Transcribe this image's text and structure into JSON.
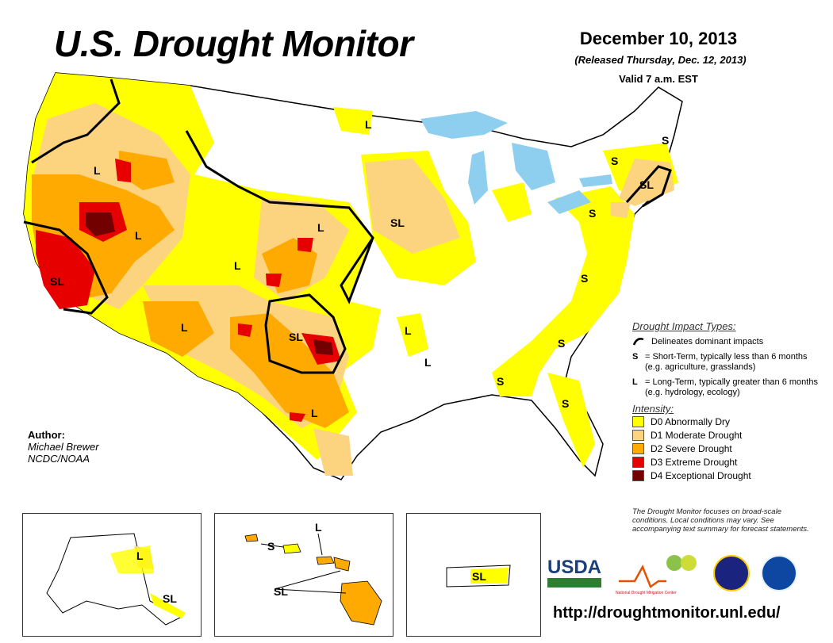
{
  "header": {
    "title": "U.S. Drought Monitor",
    "date": "December 10, 2013",
    "released": "(Released Thursday, Dec. 12, 2013)",
    "valid": "Valid 7 a.m. EST"
  },
  "legend": {
    "impact_heading": "Drought Impact Types:",
    "delineates": "Delineates dominant impacts",
    "s_symbol": "S",
    "s_text": "= Short-Term, typically less than 6 months (e.g. agriculture, grasslands)",
    "l_symbol": "L",
    "l_text": "= Long-Term, typically greater than 6 months (e.g. hydrology, ecology)",
    "intensity_heading": "Intensity:",
    "intensity": [
      {
        "label": "D0 Abnormally Dry",
        "color": "#ffff00"
      },
      {
        "label": "D1 Moderate Drought",
        "color": "#fcd37f"
      },
      {
        "label": "D2 Severe Drought",
        "color": "#ffaa00"
      },
      {
        "label": "D3 Extreme Drought",
        "color": "#e60000"
      },
      {
        "label": "D4 Exceptional Drought",
        "color": "#730000"
      }
    ]
  },
  "note": "The Drought Monitor focuses on broad-scale conditions. Local conditions may vary. See accompanying text summary for forecast statements.",
  "author": {
    "heading": "Author:",
    "name": "Michael Brewer",
    "org": "NCDC/NOAA"
  },
  "map_labels": {
    "L": "L",
    "S": "S",
    "SL": "SL"
  },
  "logos": {
    "usda": "USDA",
    "ndmc": "National Drought Mitigation Center"
  },
  "url": "http://droughtmonitor.unl.edu/",
  "colors": {
    "water": "#8ecff0",
    "border": "#000000",
    "rivers": "#5ba8e0"
  }
}
